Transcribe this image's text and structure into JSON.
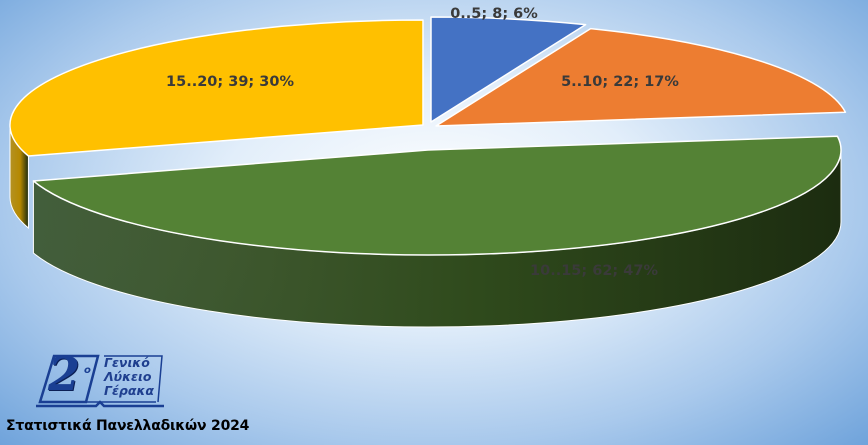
{
  "chart_data": {
    "type": "pie",
    "style": "3d-exploded",
    "start_angle_deg": 0,
    "direction": "clockwise",
    "slices": [
      {
        "category": "0..5",
        "value": 8,
        "percent": "6%",
        "label": "0..5; 8; 6%",
        "color": "#4472c4",
        "side_color": "#2f5597"
      },
      {
        "category": "5..10",
        "value": 22,
        "percent": "17%",
        "label": "5..10; 22; 17%",
        "color": "#ed7d31",
        "side_color": "#a9541d"
      },
      {
        "category": "10..15",
        "value": 62,
        "percent": "47%",
        "label": "10..15; 62; 47%",
        "color": "#548235",
        "side_color": "#2f4a1c"
      },
      {
        "category": "15..20",
        "value": 39,
        "percent": "30%",
        "label": "15..20; 39; 30%",
        "color": "#ffc000",
        "side_color": "#b58800"
      }
    ]
  },
  "logo": {
    "digit": "2",
    "superscript": "ο",
    "lines": [
      "Γενικό",
      "Λύκειο",
      "Γέρακα"
    ]
  },
  "footer": {
    "caption": "Στατιστικά Πανελλαδικών 2024"
  }
}
